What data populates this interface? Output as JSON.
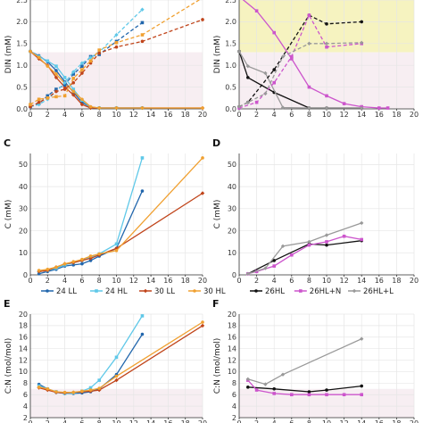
{
  "colors": {
    "LL24": "#2166ac",
    "HL24": "#5fc8e8",
    "LL30": "#c0441a",
    "HL30": "#f0a030",
    "HL26": "#111111",
    "HL26N": "#cc55cc",
    "HL26L": "#999999",
    "band_yellow": "#f6f3c0",
    "band_pink": "#f7eef2"
  },
  "chart_data": [
    {
      "id": "A",
      "type": "line",
      "letter": "",
      "ylabel": "DIN (mM)",
      "xlim": [
        0,
        20
      ],
      "ylim": [
        0,
        2.5
      ],
      "xticks": [
        0,
        2,
        4,
        6,
        8,
        10,
        12,
        14,
        16,
        18,
        20
      ],
      "yticks": [
        0.0,
        0.5,
        1.0,
        1.5,
        2.0,
        2.5
      ],
      "yticklabels": [
        "0.0",
        "0.5",
        "1.0",
        "1.5",
        "2.0",
        "2.5"
      ],
      "bands": [
        {
          "y0": 0,
          "y1": 1.3,
          "color": "band_pink"
        }
      ],
      "series": [
        {
          "name": "24 LL",
          "color": "LL24",
          "style": "solid",
          "x": [
            0,
            1,
            2,
            3,
            4,
            5,
            6,
            7,
            8,
            10,
            13
          ],
          "y": [
            1.32,
            1.22,
            1.08,
            0.88,
            0.62,
            0.38,
            0.15,
            0.04,
            0.02,
            0.02,
            0.02
          ]
        },
        {
          "name": "24 HL",
          "color": "HL24",
          "style": "solid",
          "x": [
            0,
            1,
            2,
            3,
            4,
            5,
            6,
            7,
            8,
            10,
            13
          ],
          "y": [
            1.32,
            1.2,
            1.1,
            0.98,
            0.72,
            0.45,
            0.2,
            0.03,
            0.02,
            0.02,
            0.02
          ]
        },
        {
          "name": "30 LL",
          "color": "LL30",
          "style": "solid",
          "x": [
            0,
            1,
            2,
            3,
            4,
            5,
            6,
            7,
            8,
            10,
            13,
            20
          ],
          "y": [
            1.32,
            1.15,
            1.0,
            0.72,
            0.5,
            0.32,
            0.1,
            0.02,
            0.02,
            0.02,
            0.02,
            0.02
          ]
        },
        {
          "name": "30 HL",
          "color": "HL30",
          "style": "solid",
          "x": [
            0,
            1,
            2,
            3,
            4,
            5,
            6,
            7,
            8,
            10,
            13,
            20
          ],
          "y": [
            1.32,
            1.18,
            0.98,
            0.8,
            0.58,
            0.4,
            0.22,
            0.05,
            0.02,
            0.02,
            0.02,
            0.02
          ]
        },
        {
          "name": "24 LL",
          "color": "LL24",
          "style": "dashed",
          "x": [
            0,
            1,
            2,
            3,
            4,
            5,
            6,
            7,
            8,
            10,
            13
          ],
          "y": [
            0.05,
            0.12,
            0.3,
            0.45,
            0.55,
            0.8,
            0.98,
            1.2,
            1.25,
            1.55,
            1.98
          ]
        },
        {
          "name": "24 HL",
          "color": "HL24",
          "style": "dashed",
          "x": [
            0,
            1,
            2,
            3,
            4,
            5,
            6,
            7,
            8,
            10,
            13
          ],
          "y": [
            0.05,
            0.1,
            0.22,
            0.4,
            0.6,
            0.85,
            1.05,
            1.18,
            1.3,
            1.7,
            2.28
          ]
        },
        {
          "name": "30 LL",
          "color": "LL30",
          "style": "dashed",
          "x": [
            0,
            1,
            2,
            3,
            4,
            5,
            6,
            7,
            8,
            10,
            13,
            20
          ],
          "y": [
            0.05,
            0.15,
            0.25,
            0.4,
            0.45,
            0.6,
            0.82,
            1.05,
            1.28,
            1.42,
            1.55,
            2.05
          ]
        },
        {
          "name": "30 HL",
          "color": "HL30",
          "style": "dashed",
          "x": [
            0,
            1,
            2,
            3,
            4,
            5,
            6,
            7,
            8,
            10,
            13,
            20
          ],
          "y": [
            0.1,
            0.22,
            0.25,
            0.28,
            0.3,
            0.7,
            0.9,
            1.1,
            1.35,
            1.52,
            1.7,
            2.55
          ]
        }
      ]
    },
    {
      "id": "B",
      "type": "line",
      "letter": "",
      "ylabel": "DIN (mM)",
      "xlim": [
        0,
        20
      ],
      "ylim": [
        0,
        2.5
      ],
      "xticks": [
        0,
        2,
        4,
        6,
        8,
        10,
        12,
        14,
        16,
        18,
        20
      ],
      "yticks": [
        0.0,
        0.5,
        1.0,
        1.5,
        2.0,
        2.5
      ],
      "yticklabels": [
        "0.0",
        "0.5",
        "1.0",
        "1.5",
        "2.0",
        "2.5"
      ],
      "bands": [
        {
          "y0": 1.3,
          "y1": 2.5,
          "color": "band_yellow"
        },
        {
          "y0": 0,
          "y1": 1.3,
          "color": "band_pink"
        }
      ],
      "series": [
        {
          "name": "26HL",
          "color": "HL26",
          "style": "solid",
          "x": [
            0,
            1,
            4,
            8,
            10,
            14
          ],
          "y": [
            1.32,
            0.72,
            0.38,
            0.02,
            0.02,
            0.02
          ]
        },
        {
          "name": "26HL+N",
          "color": "HL26N",
          "style": "solid",
          "x": [
            0,
            2,
            4,
            6,
            8,
            10,
            12,
            14,
            16,
            17
          ],
          "y": [
            2.58,
            2.25,
            1.75,
            1.15,
            0.5,
            0.3,
            0.12,
            0.05,
            0.02,
            0.02
          ]
        },
        {
          "name": "26HL+L",
          "color": "HL26L",
          "style": "solid",
          "x": [
            0,
            1,
            3,
            5,
            8,
            10,
            14
          ],
          "y": [
            1.32,
            0.98,
            0.82,
            0.03,
            0.02,
            0.02,
            0.02
          ]
        },
        {
          "name": "26HL",
          "color": "HL26",
          "style": "dashed",
          "x": [
            0,
            1,
            4,
            8,
            10,
            14
          ],
          "y": [
            0.05,
            0.15,
            0.9,
            2.15,
            1.95,
            2.0
          ]
        },
        {
          "name": "26HL+N",
          "color": "HL26N",
          "style": "dashed",
          "x": [
            0,
            2,
            4,
            6,
            8,
            10,
            14
          ],
          "y": [
            0.02,
            0.15,
            0.6,
            1.2,
            2.15,
            1.42,
            1.5
          ]
        },
        {
          "name": "26HL+L",
          "color": "HL26L",
          "style": "dashed",
          "x": [
            0,
            1,
            3,
            5,
            8,
            10,
            14
          ],
          "y": [
            0.05,
            0.15,
            0.35,
            1.2,
            1.5,
            1.5,
            1.52
          ]
        }
      ]
    },
    {
      "id": "C",
      "type": "line",
      "letter": "C",
      "ylabel": "C (mM)",
      "xlim": [
        0,
        20
      ],
      "ylim": [
        0,
        55
      ],
      "xticks": [
        0,
        2,
        4,
        6,
        8,
        10,
        12,
        14,
        16,
        18,
        20
      ],
      "yticks": [
        0,
        10,
        20,
        30,
        40,
        50
      ],
      "yticklabels": [
        "0",
        "10",
        "20",
        "30",
        "40",
        "50"
      ],
      "bands": [],
      "series": [
        {
          "name": "24 LL",
          "color": "LL24",
          "style": "solid",
          "x": [
            1,
            2,
            3,
            4,
            5,
            6,
            7,
            8,
            10,
            13
          ],
          "y": [
            0.5,
            1.5,
            2.5,
            4,
            4.5,
            5,
            6.5,
            8.5,
            12,
            38
          ]
        },
        {
          "name": "24 HL",
          "color": "HL24",
          "style": "solid",
          "x": [
            1,
            2,
            3,
            4,
            5,
            6,
            7,
            8,
            10,
            13
          ],
          "y": [
            1.5,
            2,
            3,
            4.5,
            5.5,
            6.5,
            8,
            9.5,
            14,
            53
          ]
        },
        {
          "name": "30 LL",
          "color": "LL30",
          "style": "solid",
          "x": [
            1,
            2,
            3,
            4,
            5,
            6,
            7,
            8,
            10,
            20
          ],
          "y": [
            1.5,
            2,
            3.5,
            5,
            5.5,
            6.5,
            7.5,
            9,
            12,
            37
          ]
        },
        {
          "name": "30 HL",
          "color": "HL30",
          "style": "solid",
          "x": [
            1,
            2,
            3,
            4,
            5,
            6,
            7,
            8,
            10,
            20
          ],
          "y": [
            2,
            2.5,
            3.5,
            5,
            6,
            7,
            8.5,
            9.5,
            11,
            53
          ]
        }
      ],
      "legend": [
        {
          "label": "24 LL",
          "color": "LL24"
        },
        {
          "label": "24 HL",
          "color": "HL24"
        },
        {
          "label": "30 LL",
          "color": "LL30"
        },
        {
          "label": "30 HL",
          "color": "HL30"
        }
      ]
    },
    {
      "id": "D",
      "type": "line",
      "letter": "D",
      "ylabel": "C (mM)",
      "xlim": [
        0,
        20
      ],
      "ylim": [
        0,
        55
      ],
      "xticks": [
        0,
        2,
        4,
        6,
        8,
        10,
        12,
        14,
        16,
        18,
        20
      ],
      "yticks": [
        0,
        10,
        20,
        30,
        40,
        50
      ],
      "yticklabels": [
        "0",
        "10",
        "20",
        "30",
        "40",
        "50"
      ],
      "bands": [],
      "series": [
        {
          "name": "26HL",
          "color": "HL26",
          "style": "solid",
          "x": [
            1,
            4,
            8,
            10,
            14
          ],
          "y": [
            0.5,
            6.5,
            14,
            13.5,
            15.5
          ]
        },
        {
          "name": "26HL+N",
          "color": "HL26N",
          "style": "solid",
          "x": [
            1,
            2,
            4,
            6,
            8,
            10,
            12,
            14
          ],
          "y": [
            0.5,
            1.5,
            4,
            9,
            13.5,
            15,
            17.5,
            16
          ]
        },
        {
          "name": "26HL+L",
          "color": "HL26L",
          "style": "solid",
          "x": [
            1,
            3,
            5,
            8,
            10,
            14
          ],
          "y": [
            0.5,
            3,
            13,
            15,
            18,
            23.5
          ]
        }
      ],
      "legend": [
        {
          "label": "26HL",
          "color": "HL26"
        },
        {
          "label": "26HL+N",
          "color": "HL26N"
        },
        {
          "label": "26HL+L",
          "color": "HL26L"
        }
      ]
    },
    {
      "id": "E",
      "type": "line",
      "letter": "E",
      "ylabel": "C:N (mol/mol)",
      "xlim": [
        0,
        20
      ],
      "ylim": [
        2,
        20
      ],
      "xticks": [
        0,
        2,
        4,
        6,
        8,
        10,
        12,
        14,
        16,
        18,
        20
      ],
      "yticks": [
        2,
        4,
        6,
        8,
        10,
        12,
        14,
        16,
        18,
        20
      ],
      "yticklabels": [
        "2",
        "4",
        "6",
        "8",
        "10",
        "12",
        "14",
        "16",
        "18",
        "20"
      ],
      "bands": [
        {
          "y0": 2,
          "y1": 7,
          "color": "band_pink"
        }
      ],
      "series": [
        {
          "name": "24 LL",
          "color": "LL24",
          "style": "solid",
          "x": [
            1,
            2,
            3,
            4,
            5,
            6,
            7,
            8,
            10,
            13
          ],
          "y": [
            7.8,
            7,
            6.4,
            6.2,
            6.2,
            6.3,
            6.5,
            7,
            9.5,
            16.5
          ]
        },
        {
          "name": "24 HL",
          "color": "HL24",
          "style": "solid",
          "x": [
            1,
            2,
            3,
            4,
            5,
            6,
            7,
            8,
            10,
            13
          ],
          "y": [
            7.5,
            7,
            6.5,
            6.2,
            6.3,
            6.6,
            7.2,
            8.5,
            12.5,
            19.7
          ]
        },
        {
          "name": "30 LL",
          "color": "LL30",
          "style": "solid",
          "x": [
            1,
            2,
            3,
            4,
            5,
            6,
            7,
            8,
            10,
            20
          ],
          "y": [
            7.2,
            6.8,
            6.4,
            6.3,
            6.4,
            6.5,
            6.6,
            6.8,
            8.5,
            18
          ]
        },
        {
          "name": "30 HL",
          "color": "HL30",
          "style": "solid",
          "x": [
            1,
            2,
            3,
            4,
            5,
            6,
            7,
            8,
            10,
            20
          ],
          "y": [
            7.3,
            7,
            6.5,
            6.4,
            6.4,
            6.6,
            6.8,
            7.1,
            9.2,
            18.6
          ]
        }
      ]
    },
    {
      "id": "F",
      "type": "line",
      "letter": "F",
      "ylabel": "C:N (mol/mol)",
      "xlim": [
        0,
        20
      ],
      "ylim": [
        2,
        20
      ],
      "xticks": [
        0,
        2,
        4,
        6,
        8,
        10,
        12,
        14,
        16,
        18,
        20
      ],
      "yticks": [
        2,
        4,
        6,
        8,
        10,
        12,
        14,
        16,
        18,
        20
      ],
      "yticklabels": [
        "2",
        "4",
        "6",
        "8",
        "10",
        "12",
        "14",
        "16",
        "18",
        "20"
      ],
      "bands": [
        {
          "y0": 2,
          "y1": 7,
          "color": "band_pink"
        }
      ],
      "series": [
        {
          "name": "26HL",
          "color": "HL26",
          "style": "solid",
          "x": [
            1,
            4,
            8,
            10,
            14
          ],
          "y": [
            7.3,
            7,
            6.5,
            6.8,
            7.5
          ]
        },
        {
          "name": "26HL+N",
          "color": "HL26N",
          "style": "solid",
          "x": [
            1,
            2,
            4,
            6,
            8,
            10,
            12,
            14
          ],
          "y": [
            8.5,
            6.8,
            6.2,
            6,
            6,
            6,
            6,
            6
          ]
        },
        {
          "name": "26HL+L",
          "color": "HL26L",
          "style": "solid",
          "x": [
            1,
            3,
            5,
            14
          ],
          "y": [
            8.7,
            7.8,
            9.5,
            15.7
          ]
        }
      ]
    }
  ]
}
